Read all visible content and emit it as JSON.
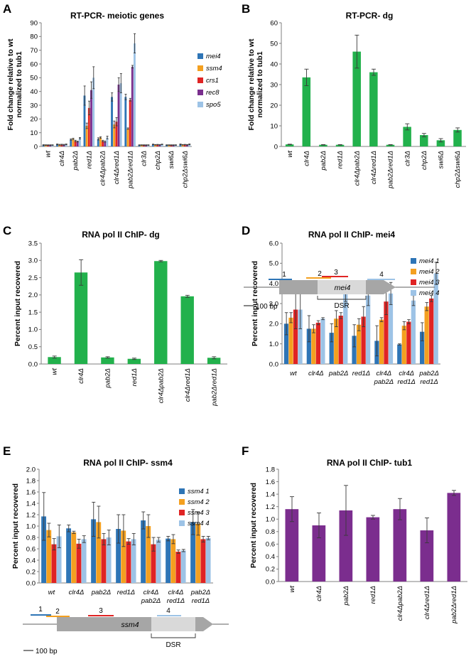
{
  "panels": {
    "A": {
      "label": "A"
    },
    "B": {
      "label": "B"
    },
    "C": {
      "label": "C"
    },
    "D": {
      "label": "D"
    },
    "E": {
      "label": "E"
    },
    "F": {
      "label": "F"
    }
  },
  "colors": {
    "blue": "#2e75b6",
    "orange": "#f4a020",
    "red": "#e02424",
    "purple": "#7a2f8e",
    "lightblue": "#9dc3e6",
    "green": "#22b14c",
    "violet": "#7b2d8e",
    "gene": "#a6a6a6",
    "gene_light": "#d9d9d9"
  },
  "maps": {
    "mei4": {
      "gene_label": "mei4",
      "scale_label": "100 bp",
      "dsr_label": "DSR",
      "region_labels": [
        "1",
        "2",
        "3",
        "4"
      ]
    },
    "ssm4": {
      "gene_label": "ssm4",
      "scale_label": "100 bp",
      "dsr_label": "DSR",
      "region_labels": [
        "1",
        "2",
        "3",
        "4"
      ]
    }
  },
  "chart_data": [
    {
      "id": "A",
      "type": "bar",
      "title": "RT-PCR- meiotic genes",
      "ylabel": [
        "Fold change relative to wt",
        "normalized to tub1"
      ],
      "ylim": [
        0,
        90
      ],
      "yticks": [
        0,
        10,
        20,
        30,
        40,
        50,
        60,
        70,
        80,
        90
      ],
      "tick_decimals": 0,
      "categories": [
        "wt",
        "clr4Δ",
        "pab2Δ",
        "red1Δ",
        "clr4Δpab2Δ",
        "clr4Δred1Δ",
        "pab2Δred1Δ",
        "clr3Δ",
        "chp2Δ",
        "swi6Δ",
        "chp2Δswi6Δ"
      ],
      "series": [
        {
          "name": "mei4",
          "color": "#2e75b6",
          "values": [
            1,
            1.5,
            5,
            37,
            5.5,
            36,
            36,
            1,
            1.5,
            1,
            1.5
          ],
          "err": [
            0.3,
            0.3,
            0.5,
            7,
            0.8,
            3,
            2,
            0.2,
            0.2,
            0.2,
            0.3
          ]
        },
        {
          "name": "ssm4",
          "color": "#f4a020",
          "values": [
            1,
            1.2,
            5.5,
            15,
            6.5,
            16,
            13,
            1,
            1.2,
            1,
            1.2
          ],
          "err": [
            0.2,
            0.3,
            0.5,
            2,
            0.5,
            2.5,
            0.5,
            0.2,
            0.2,
            0.2,
            0.2
          ]
        },
        {
          "name": "crs1",
          "color": "#e02424",
          "values": [
            1,
            1.3,
            4,
            28,
            4,
            18,
            34,
            1,
            1.3,
            1,
            1.3
          ],
          "err": [
            0.2,
            0.3,
            0.5,
            5,
            0.5,
            3,
            1,
            0.2,
            0.2,
            0.2,
            0.2
          ]
        },
        {
          "name": "rec8",
          "color": "#7a2f8e",
          "values": [
            1,
            1.2,
            3.5,
            41,
            3.5,
            45,
            58,
            1,
            1.2,
            1,
            1.2
          ],
          "err": [
            0.2,
            0.3,
            0.4,
            6,
            0.5,
            5,
            1,
            0.2,
            0.2,
            0.2,
            0.2
          ]
        },
        {
          "name": "spo5",
          "color": "#9dc3e6",
          "values": [
            1,
            1.5,
            6,
            50,
            6.5,
            46,
            75,
            1,
            1.5,
            1,
            1.5
          ],
          "err": [
            0.2,
            0.3,
            0.5,
            8,
            1,
            7,
            7,
            0.2,
            0.2,
            0.2,
            0.3
          ]
        }
      ]
    },
    {
      "id": "B",
      "type": "bar",
      "title": "RT-PCR- dg",
      "ylabel": [
        "Fold change relative to wt",
        "normalized to tub1"
      ],
      "ylim": [
        0,
        60
      ],
      "yticks": [
        0,
        10,
        20,
        30,
        40,
        50,
        60
      ],
      "tick_decimals": 0,
      "categories": [
        "wt",
        "clr4Δ",
        "pab2Δ",
        "red1Δ",
        "clr4Δpab2Δ",
        "clr4Δred1Δ",
        "pab2Δred1Δ",
        "clr3Δ",
        "chp2Δ",
        "swi6Δ",
        "chp2Δswi6Δ"
      ],
      "series": [
        {
          "name": "dg",
          "color": "#22b14c",
          "values": [
            1,
            33.5,
            0.8,
            0.8,
            46,
            36,
            0.8,
            9.5,
            5.5,
            3,
            8
          ],
          "err": [
            0.1,
            4,
            0.1,
            0.1,
            8,
            1.5,
            0.1,
            1.5,
            0.8,
            0.8,
            1
          ]
        }
      ]
    },
    {
      "id": "C",
      "type": "bar",
      "title": "RNA pol II ChIP- dg",
      "ylabel": [
        "Percent input recovered"
      ],
      "ylim": [
        0,
        3.5
      ],
      "yticks": [
        0,
        0.5,
        1.0,
        1.5,
        2.0,
        2.5,
        3.0,
        3.5
      ],
      "tick_decimals": 1,
      "categories": [
        "wt",
        "clr4Δ",
        "pab2Δ",
        "red1Δ",
        "clr4Δpab2Δ",
        "clr4Δred1Δ",
        "pab2Δred1Δ"
      ],
      "series": [
        {
          "name": "dg",
          "color": "#22b14c",
          "values": [
            0.2,
            2.65,
            0.19,
            0.15,
            2.98,
            1.96,
            0.18
          ],
          "err": [
            0.03,
            0.37,
            0.02,
            0.02,
            0.02,
            0.03,
            0.03
          ]
        }
      ]
    },
    {
      "id": "D",
      "type": "bar",
      "title": "RNA pol II ChIP- mei4",
      "ylabel": [
        "Percent input recovered"
      ],
      "ylim": [
        0,
        6.0
      ],
      "yticks": [
        0,
        1.0,
        2.0,
        3.0,
        4.0,
        5.0,
        6.0
      ],
      "tick_decimals": 1,
      "categories": [
        [
          "wt"
        ],
        [
          "clr4Δ"
        ],
        [
          "pab2Δ"
        ],
        [
          "red1Δ"
        ],
        [
          "clr4Δ",
          "pab2Δ"
        ],
        [
          "clr4Δ",
          "red1Δ"
        ],
        [
          "pab2Δ",
          "red1Δ"
        ]
      ],
      "series": [
        {
          "name": "mei4 1",
          "color": "#2e75b6",
          "values": [
            2.0,
            1.75,
            1.55,
            1.4,
            1.15,
            0.97,
            1.6
          ],
          "err": [
            0.55,
            0.65,
            0.45,
            0.55,
            0.75,
            0.03,
            0.45
          ]
        },
        {
          "name": "mei4 2",
          "color": "#f4a020",
          "values": [
            2.3,
            1.75,
            2.25,
            1.95,
            2.2,
            1.9,
            2.85
          ],
          "err": [
            0.25,
            0.2,
            0.4,
            0.3,
            0.1,
            0.2,
            0.2
          ]
        },
        {
          "name": "mei4 3",
          "color": "#e02424",
          "values": [
            2.7,
            2.05,
            2.4,
            2.35,
            3.1,
            2.1,
            3.25
          ],
          "err": [
            0.95,
            0.1,
            0.15,
            0.5,
            0.65,
            0.1,
            0.15
          ]
        },
        {
          "name": "mei4 4",
          "color": "#9dc3e6",
          "values": [
            2.7,
            2.25,
            3.5,
            3.4,
            3.5,
            3.15,
            4.5
          ],
          "err": [
            0.95,
            0.05,
            0.4,
            0.5,
            0.55,
            0.25,
            0.55
          ]
        }
      ]
    },
    {
      "id": "E",
      "type": "bar",
      "title": "RNA pol II ChIP- ssm4",
      "ylabel": [
        "Percent input recovered"
      ],
      "ylim": [
        0,
        2.0
      ],
      "yticks": [
        0,
        0.2,
        0.4,
        0.6,
        0.8,
        1.0,
        1.2,
        1.4,
        1.6,
        1.8,
        2.0
      ],
      "tick_decimals": 1,
      "categories": [
        [
          "wt"
        ],
        [
          "clr4Δ"
        ],
        [
          "pab2Δ"
        ],
        [
          "red1Δ"
        ],
        [
          "clr4Δ",
          "pab2Δ"
        ],
        [
          "clr4Δ",
          "red1Δ"
        ],
        [
          "pab2Δ",
          "red1Δ"
        ]
      ],
      "series": [
        {
          "name": "ssm4 1",
          "color": "#2e75b6",
          "values": [
            1.17,
            0.96,
            1.12,
            0.95,
            1.1,
            0.78,
            1.07
          ],
          "err": [
            0.42,
            0.06,
            0.3,
            0.25,
            0.15,
            0.04,
            0.22
          ]
        },
        {
          "name": "ssm4 2",
          "color": "#f4a020",
          "values": [
            0.93,
            0.89,
            1.07,
            0.92,
            1.0,
            0.77,
            1.04
          ],
          "err": [
            0.12,
            0.02,
            0.28,
            0.28,
            0.2,
            0.08,
            0.2
          ]
        },
        {
          "name": "ssm4 3",
          "color": "#e02424",
          "values": [
            0.68,
            0.69,
            0.77,
            0.73,
            0.68,
            0.55,
            0.77
          ],
          "err": [
            0.1,
            0.08,
            0.1,
            0.05,
            0.12,
            0.03,
            0.05
          ]
        },
        {
          "name": "ssm4 4",
          "color": "#9dc3e6",
          "values": [
            0.82,
            0.77,
            0.8,
            0.77,
            0.76,
            0.57,
            0.79
          ],
          "err": [
            0.2,
            0.06,
            0.13,
            0.1,
            0.04,
            0.02,
            0.03
          ]
        }
      ]
    },
    {
      "id": "F",
      "type": "bar",
      "title": "RNA pol II ChIP- tub1",
      "ylabel": [
        "Percent input recovered"
      ],
      "ylim": [
        0,
        1.8
      ],
      "yticks": [
        0,
        0.2,
        0.4,
        0.6,
        0.8,
        1.0,
        1.2,
        1.4,
        1.6,
        1.8
      ],
      "tick_decimals": 1,
      "categories": [
        "wt",
        "clr4Δ",
        "pab2Δ",
        "red1Δ",
        "clr4Δpab2Δ",
        "clr4Δred1Δ",
        "pab2Δred1Δ"
      ],
      "series": [
        {
          "name": "tub1",
          "color": "#7b2d8e",
          "values": [
            1.16,
            0.9,
            1.14,
            1.03,
            1.16,
            0.82,
            1.42
          ],
          "err": [
            0.2,
            0.2,
            0.4,
            0.03,
            0.17,
            0.2,
            0.04
          ]
        }
      ]
    }
  ]
}
